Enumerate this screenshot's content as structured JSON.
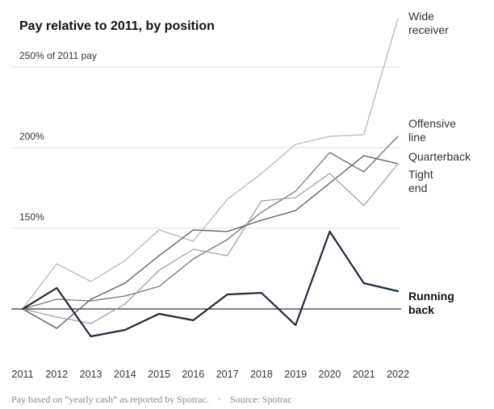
{
  "chart_data": {
    "type": "line",
    "title": "Pay relative to 2011, by position",
    "xlabel": "",
    "ylabel": "",
    "x": [
      2011,
      2012,
      2013,
      2014,
      2015,
      2016,
      2017,
      2018,
      2019,
      2020,
      2021,
      2022
    ],
    "y_ticks": [
      {
        "value": 150,
        "label": "150%"
      },
      {
        "value": 200,
        "label": "200%"
      },
      {
        "value": 250,
        "label": "250% of 2011 pay"
      }
    ],
    "baseline": 100,
    "ylim": [
      70,
      280
    ],
    "grid": true,
    "series": [
      {
        "name": "Wide receiver",
        "label_lines": [
          "Wide",
          "receiver"
        ],
        "color": "#b8b8b8",
        "width": 1.3,
        "bold": false,
        "values": [
          100,
          128,
          117,
          130,
          149,
          142,
          168,
          184,
          202,
          207,
          208,
          280
        ]
      },
      {
        "name": "Offensive line",
        "label_lines": [
          "Offensive",
          "line"
        ],
        "color": "#767676",
        "width": 1.3,
        "bold": false,
        "values": [
          100,
          106,
          105,
          108,
          114,
          131,
          143,
          160,
          173,
          197,
          185,
          207
        ]
      },
      {
        "name": "Quarterback",
        "label_lines": [
          "Quarterback"
        ],
        "color": "#5a5a5a",
        "width": 1.3,
        "bold": false,
        "values": [
          100,
          88,
          106,
          116,
          133,
          149,
          148,
          155,
          161,
          178,
          195,
          190
        ]
      },
      {
        "name": "Tight end",
        "label_lines": [
          "Tight",
          "end"
        ],
        "color": "#a2a2a2",
        "width": 1.3,
        "bold": false,
        "values": [
          100,
          95,
          91,
          103,
          124,
          137,
          133,
          167,
          169,
          184,
          164,
          190
        ]
      },
      {
        "name": "Running back",
        "label_lines": [
          "Running",
          "back"
        ],
        "color": "#1e2b3c",
        "width": 2.2,
        "bold": true,
        "values": [
          100,
          113,
          83,
          87,
          97,
          93,
          109,
          110,
          90,
          148,
          116,
          111
        ]
      }
    ]
  },
  "footer": {
    "note": "Pay based on “yearly cash” as reported by Spotrac.",
    "separator": "•",
    "source": "Source: Spotrac"
  }
}
